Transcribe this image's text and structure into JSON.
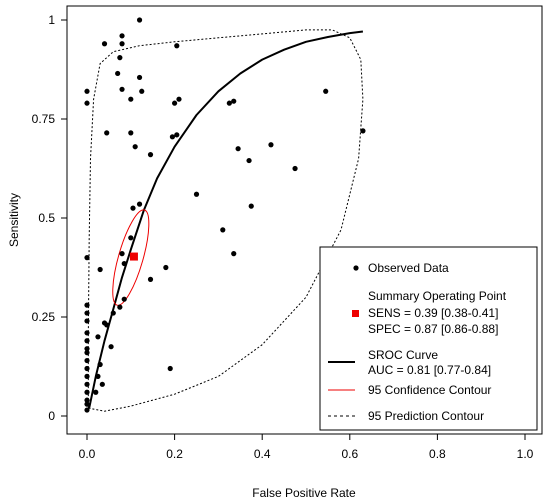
{
  "chart_data": {
    "type": "scatter",
    "xlabel": "False Positive Rate",
    "ylabel": "Sensitivity",
    "xlim": [
      0,
      1
    ],
    "ylim": [
      0,
      1
    ],
    "x_ticks": [
      "0.0",
      "0.2",
      "0.4",
      "0.6",
      "0.8",
      "1.0"
    ],
    "y_ticks": [
      "0",
      "0.25",
      "0.5",
      "0.75",
      "1"
    ],
    "grid": false,
    "legend_position": "bottom-right",
    "legend": {
      "observed": "Observed Data",
      "summary_title": "Summary Operating Point",
      "sens": "SENS = 0.39 [0.38-0.41]",
      "spec": "SPEC = 0.87 [0.86-0.88]",
      "sroc": "SROC Curve",
      "auc": "AUC = 0.81 [0.77-0.84]",
      "confidence": "95 Confidence Contour",
      "prediction": "95 Prediction Contour"
    },
    "colors": {
      "points": "#000000",
      "summary": "#ee0000",
      "sroc": "#000000",
      "confidence": "#ee0000",
      "prediction": "#000000"
    },
    "observed": [
      [
        0.0,
        0.82
      ],
      [
        0.0,
        0.79
      ],
      [
        0.0,
        0.4
      ],
      [
        0.0,
        0.28
      ],
      [
        0.0,
        0.26
      ],
      [
        0.0,
        0.24
      ],
      [
        0.0,
        0.21
      ],
      [
        0.0,
        0.19
      ],
      [
        0.0,
        0.17
      ],
      [
        0.0,
        0.16
      ],
      [
        0.0,
        0.14
      ],
      [
        0.0,
        0.12
      ],
      [
        0.0,
        0.1
      ],
      [
        0.0,
        0.08
      ],
      [
        0.0,
        0.06
      ],
      [
        0.0,
        0.04
      ],
      [
        0.0,
        0.03
      ],
      [
        0.0,
        0.015
      ],
      [
        0.04,
        0.94
      ],
      [
        0.045,
        0.715
      ],
      [
        0.03,
        0.37
      ],
      [
        0.04,
        0.235
      ],
      [
        0.045,
        0.23
      ],
      [
        0.025,
        0.2
      ],
      [
        0.055,
        0.175
      ],
      [
        0.03,
        0.13
      ],
      [
        0.025,
        0.1
      ],
      [
        0.035,
        0.08
      ],
      [
        0.02,
        0.06
      ],
      [
        0.08,
        0.96
      ],
      [
        0.08,
        0.94
      ],
      [
        0.075,
        0.905
      ],
      [
        0.07,
        0.865
      ],
      [
        0.08,
        0.825
      ],
      [
        0.1,
        0.715
      ],
      [
        0.1,
        0.8
      ],
      [
        0.11,
        0.68
      ],
      [
        0.08,
        0.41
      ],
      [
        0.085,
        0.385
      ],
      [
        0.075,
        0.275
      ],
      [
        0.085,
        0.295
      ],
      [
        0.06,
        0.26
      ],
      [
        0.1,
        0.45
      ],
      [
        0.105,
        0.525
      ],
      [
        0.12,
        1.0
      ],
      [
        0.12,
        0.855
      ],
      [
        0.125,
        0.82
      ],
      [
        0.145,
        0.66
      ],
      [
        0.12,
        0.535
      ],
      [
        0.145,
        0.345
      ],
      [
        0.18,
        0.375
      ],
      [
        0.19,
        0.12
      ],
      [
        0.195,
        0.705
      ],
      [
        0.205,
        0.71
      ],
      [
        0.2,
        0.79
      ],
      [
        0.21,
        0.8
      ],
      [
        0.205,
        0.935
      ],
      [
        0.25,
        0.56
      ],
      [
        0.31,
        0.47
      ],
      [
        0.325,
        0.79
      ],
      [
        0.335,
        0.795
      ],
      [
        0.335,
        0.41
      ],
      [
        0.345,
        0.675
      ],
      [
        0.37,
        0.645
      ],
      [
        0.375,
        0.53
      ],
      [
        0.42,
        0.685
      ],
      [
        0.475,
        0.625
      ],
      [
        0.545,
        0.82
      ],
      [
        0.63,
        0.72
      ]
    ],
    "summary_point": {
      "x": 0.13,
      "y": 0.39
    },
    "sroc_curve": [
      [
        0.005,
        0.02
      ],
      [
        0.02,
        0.1
      ],
      [
        0.04,
        0.19
      ],
      [
        0.06,
        0.27
      ],
      [
        0.08,
        0.35
      ],
      [
        0.1,
        0.42
      ],
      [
        0.13,
        0.52
      ],
      [
        0.16,
        0.6
      ],
      [
        0.2,
        0.68
      ],
      [
        0.25,
        0.76
      ],
      [
        0.3,
        0.82
      ],
      [
        0.35,
        0.865
      ],
      [
        0.4,
        0.9
      ],
      [
        0.45,
        0.925
      ],
      [
        0.5,
        0.945
      ],
      [
        0.55,
        0.957
      ],
      [
        0.6,
        0.967
      ],
      [
        0.63,
        0.971
      ]
    ],
    "confidence_contour": {
      "center": [
        0.1,
        0.4
      ],
      "rx": 0.028,
      "ry": 0.125,
      "rotation_deg": 16
    },
    "prediction_contour": [
      [
        0.003,
        0.02
      ],
      [
        0.003,
        0.2
      ],
      [
        0.005,
        0.45
      ],
      [
        0.008,
        0.65
      ],
      [
        0.015,
        0.8
      ],
      [
        0.03,
        0.89
      ],
      [
        0.06,
        0.92
      ],
      [
        0.12,
        0.935
      ],
      [
        0.2,
        0.945
      ],
      [
        0.3,
        0.955
      ],
      [
        0.4,
        0.965
      ],
      [
        0.5,
        0.975
      ],
      [
        0.56,
        0.975
      ],
      [
        0.6,
        0.955
      ],
      [
        0.625,
        0.9
      ],
      [
        0.63,
        0.8
      ],
      [
        0.62,
        0.65
      ],
      [
        0.58,
        0.47
      ],
      [
        0.5,
        0.3
      ],
      [
        0.4,
        0.18
      ],
      [
        0.3,
        0.1
      ],
      [
        0.2,
        0.055
      ],
      [
        0.1,
        0.025
      ],
      [
        0.04,
        0.012
      ],
      [
        0.003,
        0.02
      ]
    ]
  }
}
